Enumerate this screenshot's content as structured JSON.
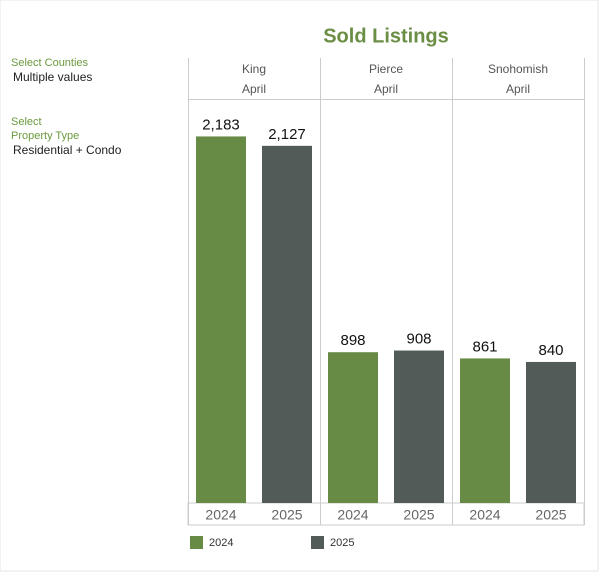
{
  "filters": [
    {
      "label": [
        "Select Counties"
      ],
      "value": "Multiple values"
    },
    {
      "label": [
        "Select",
        "Property Type"
      ],
      "value": "Residential + Condo"
    }
  ],
  "chart_data": {
    "type": "bar",
    "title": "Sold Listings",
    "categories": [
      "King",
      "Pierce",
      "Snohomish"
    ],
    "periods": [
      "April",
      "April",
      "April"
    ],
    "series": [
      {
        "name": "2024",
        "color": "#678a45",
        "values": [
          2183,
          898,
          861
        ],
        "value_labels": [
          "2,183",
          "898",
          "861"
        ]
      },
      {
        "name": "2025",
        "color": "#525b58",
        "values": [
          2127,
          908,
          840
        ],
        "value_labels": [
          "2,127",
          "908",
          "840"
        ]
      }
    ],
    "ylim": [
      0,
      2400
    ]
  }
}
